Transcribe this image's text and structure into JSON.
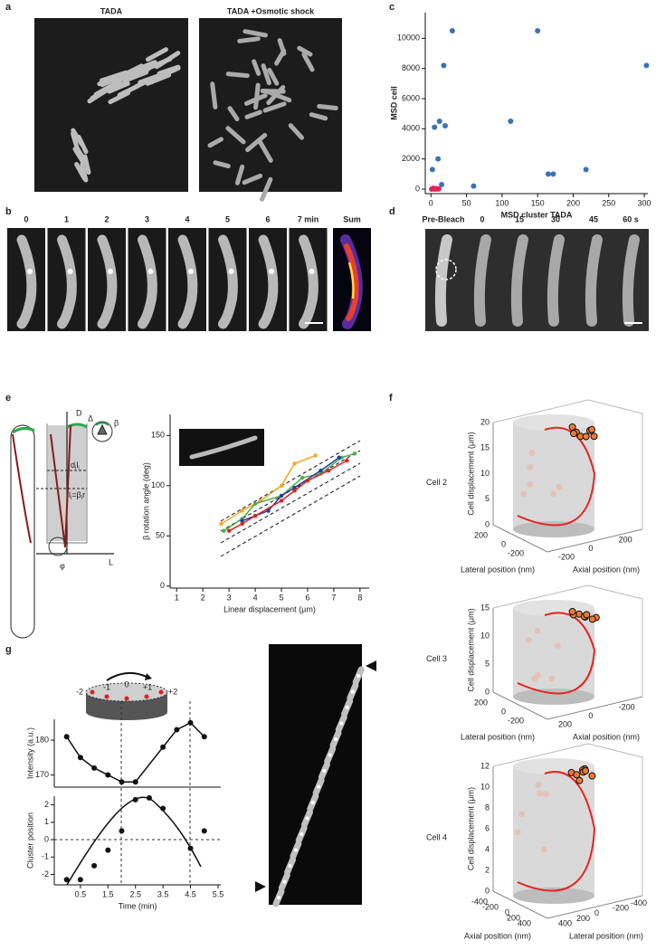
{
  "panels": {
    "a": {
      "label": "a",
      "titles": [
        "TADA",
        "TADA +Osmotic shock"
      ]
    },
    "b": {
      "label": "b",
      "times": [
        "0",
        "1",
        "2",
        "3",
        "4",
        "5",
        "6",
        "7 min"
      ],
      "sum": "Sum"
    },
    "c": {
      "label": "c"
    },
    "d": {
      "label": "d",
      "times": [
        "Pre-Bleach",
        "0",
        "15",
        "30",
        "45",
        "60 s"
      ]
    },
    "e": {
      "label": "e",
      "diagram": {
        "D": "D",
        "Delta": "Δ",
        "beta": "β",
        "L": "L",
        "phi": "φ",
        "dl": [
          "d",
          "i",
          "l",
          "i"
        ],
        "lbr": [
          "l",
          "i",
          "=β",
          "i",
          "r"
        ]
      }
    },
    "f": {
      "label": "f",
      "z_title": "Cell displacement (μm)",
      "cells": [
        {
          "name": "Cell 2",
          "z_ticks": [
            0,
            5,
            10,
            15,
            20
          ],
          "left_axis": {
            "title": "Lateral position (nm)",
            "ticks": [
              200,
              0,
              -200
            ]
          },
          "right_axis": {
            "title": "Axial position (nm)",
            "ticks": [
              -200,
              0,
              200
            ]
          }
        },
        {
          "name": "Cell 3",
          "z_ticks": [
            0,
            5,
            10,
            15
          ],
          "left_axis": {
            "title": "Lateral position (nm)",
            "ticks": [
              200,
              0,
              -200
            ]
          },
          "right_axis": {
            "title": "Axial position (nm)",
            "ticks": [
              200,
              0,
              -200
            ]
          }
        },
        {
          "name": "Cell 4",
          "z_ticks": [
            0,
            2,
            4,
            6,
            8,
            10,
            12
          ],
          "left_axis": {
            "title": "Axial position (nm)",
            "ticks": [
              -400,
              -200,
              0,
              200,
              400
            ]
          },
          "right_axis": {
            "title": "Lateral position (nm)",
            "ticks": [
              400,
              200,
              0,
              -200,
              -400
            ]
          }
        }
      ]
    },
    "g": {
      "label": "g",
      "positions": [
        "0",
        "-1",
        "+1",
        "-2",
        "+2"
      ]
    }
  },
  "chart_data": [
    {
      "type": "scatter",
      "xlabel": "MSD cluster TADA",
      "ylabel": "MSD cell",
      "xlim": [
        -8,
        305
      ],
      "ylim": [
        -300,
        11700
      ],
      "xticks": [
        0,
        50,
        100,
        150,
        200,
        250,
        300
      ],
      "yticks": [
        0,
        2000,
        4000,
        6000,
        8000,
        10000
      ],
      "series": [
        {
          "color": "#3b72b8",
          "x": [
            2,
            5,
            10,
            12,
            15,
            18,
            20,
            30,
            60,
            112,
            150,
            165,
            172,
            218,
            303
          ],
          "values": [
            1300,
            4100,
            2000,
            4500,
            300,
            8200,
            4200,
            10500,
            200,
            4500,
            10500,
            1000,
            1000,
            1300,
            8200
          ]
        },
        {
          "color": "#e3245c",
          "x": [
            1,
            3,
            5,
            7,
            9,
            11
          ],
          "values": [
            0,
            50,
            0,
            30,
            0,
            20
          ]
        }
      ]
    },
    {
      "type": "line",
      "xlabel": "Linear displacement (μm)",
      "ylabel": "β rotation angle (deg)",
      "xlim": [
        0.75,
        8.35
      ],
      "ylim": [
        -2,
        171
      ],
      "xticks": [
        1,
        2,
        3,
        4,
        5,
        6,
        7,
        8
      ],
      "yticks": [
        0,
        50,
        100,
        150
      ],
      "series": [
        {
          "color": "#f5a623",
          "x": [
            2.7,
            3.5,
            4.2,
            5,
            5.5,
            6.3
          ],
          "values": [
            62,
            75,
            85,
            100,
            122,
            130
          ]
        },
        {
          "color": "#4cae4c",
          "x": [
            2.8,
            3.5,
            4,
            5,
            5.8,
            6.5,
            7.3,
            7.8
          ],
          "values": [
            55,
            67,
            82,
            90,
            108,
            112,
            128,
            132
          ]
        },
        {
          "color": "#1f3f9f",
          "x": [
            3.5,
            4,
            4.5,
            5,
            5.5,
            6.5,
            7.2
          ],
          "values": [
            65,
            70,
            75,
            90,
            98,
            115,
            128
          ]
        },
        {
          "color": "#e02020",
          "x": [
            3,
            3.5,
            4,
            5,
            5.5,
            6,
            6.8,
            7.5
          ],
          "values": [
            55,
            62,
            70,
            85,
            95,
            105,
            115,
            125
          ]
        }
      ]
    },
    {
      "type": "line",
      "ylabel": "Intensity (a.u.)",
      "xlim": [
        -0.45,
        5.6
      ],
      "ylim": [
        166.5,
        186
      ],
      "yticks": [
        170,
        180
      ],
      "x": [
        0,
        0.5,
        1,
        1.5,
        2,
        2.5,
        3.5,
        4,
        4.5,
        5
      ],
      "series": [
        {
          "color": "#111111",
          "values": [
            181,
            175,
            172,
            170,
            168,
            168,
            178,
            183,
            185,
            181
          ]
        }
      ]
    },
    {
      "type": "scatter",
      "xlabel": "Time (min)",
      "ylabel": "Cluster position",
      "xlim": [
        -0.45,
        5.6
      ],
      "ylim": [
        -2.6,
        2.5
      ],
      "xticks": [
        0.5,
        1.5,
        2.5,
        3.5,
        4.5,
        5.5
      ],
      "yticks": [
        -2,
        -1,
        0,
        1,
        2
      ],
      "x": [
        0,
        0.5,
        1,
        1.5,
        2,
        2.5,
        3,
        3.5,
        4.5,
        5
      ],
      "series": [
        {
          "color": "#111111",
          "values": [
            -2.3,
            -2.3,
            -1.5,
            -0.6,
            0.5,
            2.3,
            2.4,
            1.8,
            -0.5,
            0.5
          ]
        }
      ]
    }
  ]
}
